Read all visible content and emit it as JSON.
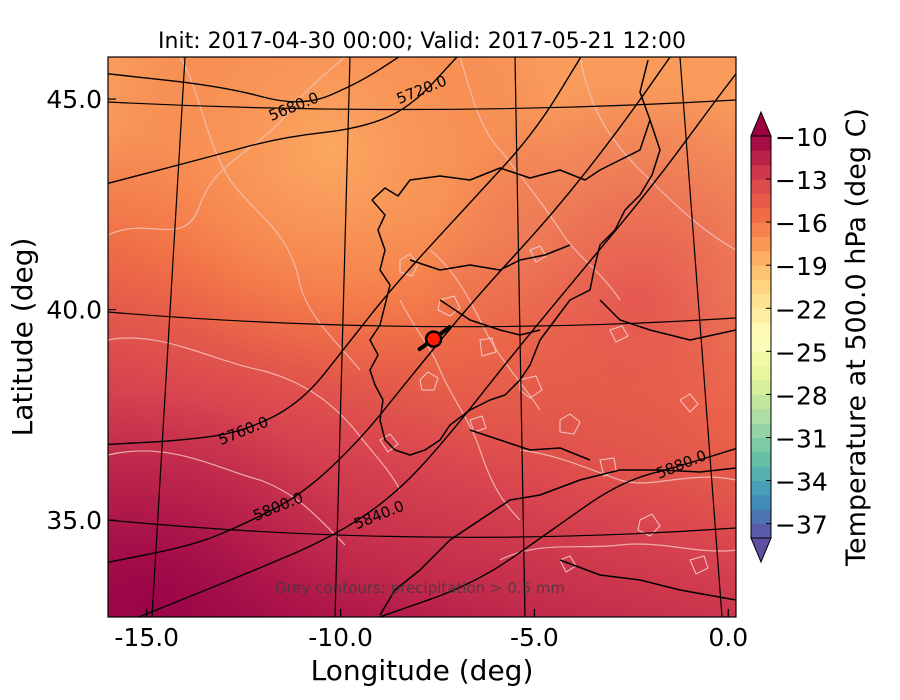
{
  "chart_data": {
    "type": "heatmap",
    "title": "Init: 2017-04-30 00:00; Valid: 2017-05-21 12:00",
    "xlabel": "Longitude (deg)",
    "ylabel": "Latitude (deg)",
    "xlim": [
      -16.0,
      0.2
    ],
    "ylim": [
      32.7,
      46.0
    ],
    "x_ticks": [
      -15.0,
      -10.0,
      -5.0,
      0.0
    ],
    "x_tick_labels": [
      "-15.0",
      "-10.0",
      "-5.0",
      "0.0"
    ],
    "y_ticks": [
      35.0,
      40.0,
      45.0
    ],
    "y_tick_labels": [
      "35.0",
      "40.0",
      "45.0"
    ],
    "colorbar": {
      "label": "Temperature at 500.0 hPa (deg C)",
      "min": -38,
      "max": -10,
      "tick_values": [
        -10,
        -13,
        -16,
        -19,
        -22,
        -25,
        -28,
        -31,
        -34,
        -37
      ],
      "tick_labels": [
        "−10",
        "−13",
        "−16",
        "−19",
        "−22",
        "−25",
        "−28",
        "−31",
        "−34",
        "−37"
      ],
      "colors": [
        "#5e4fa2",
        "#3f93bd",
        "#66c2a5",
        "#abdda4",
        "#e6f598",
        "#ffffbf",
        "#fee08b",
        "#fdae61",
        "#f46d43",
        "#d53e4f",
        "#9e0142"
      ],
      "extend": "both"
    },
    "height_contours": [
      {
        "value": 5680,
        "label": "5680.0",
        "label_lon": -11.2,
        "label_lat": 44.8,
        "points": [
          [
            -16,
            45.6
          ],
          [
            -13,
            45.3
          ],
          [
            -11,
            44.8
          ],
          [
            -9.5,
            45.4
          ],
          [
            -8.5,
            46.0
          ]
        ]
      },
      {
        "value": 5720,
        "label": "5720.0",
        "label_lon": -7.9,
        "label_lat": 45.2,
        "points": [
          [
            -16,
            43.0
          ],
          [
            -13.5,
            43.6
          ],
          [
            -11.5,
            44.1
          ],
          [
            -9.5,
            44.3
          ],
          [
            -8.2,
            44.8
          ],
          [
            -7.0,
            46.0
          ]
        ]
      },
      {
        "value": 5760,
        "label": "5760.0",
        "label_lon": -12.5,
        "label_lat": 37.1,
        "points": [
          [
            -16,
            36.8
          ],
          [
            -14,
            36.9
          ],
          [
            -12.5,
            37.1
          ],
          [
            -11.0,
            37.8
          ],
          [
            -9.8,
            39.2
          ],
          [
            -8.6,
            40.6
          ],
          [
            -6.6,
            42.6
          ],
          [
            -5.0,
            44.2
          ],
          [
            -3.8,
            46.0
          ]
        ]
      },
      {
        "value": 5800,
        "label": "5800.0",
        "label_lon": -11.6,
        "label_lat": 35.3,
        "points": [
          [
            -16,
            34.0
          ],
          [
            -13.8,
            34.4
          ],
          [
            -12.5,
            34.9
          ],
          [
            -11.0,
            35.6
          ],
          [
            -9.5,
            36.9
          ],
          [
            -8.2,
            38.4
          ],
          [
            -6.5,
            40.3
          ],
          [
            -4.5,
            42.3
          ],
          [
            -2.8,
            44.3
          ],
          [
            -1.5,
            46.0
          ]
        ]
      },
      {
        "value": 5840,
        "label": "5840.0",
        "label_lon": -9.0,
        "label_lat": 35.1,
        "points": [
          [
            -15.2,
            32.7
          ],
          [
            -12.5,
            33.7
          ],
          [
            -10.2,
            34.6
          ],
          [
            -8.6,
            35.6
          ],
          [
            -7.3,
            36.9
          ],
          [
            -5.5,
            39.0
          ],
          [
            -3.7,
            41.0
          ],
          [
            -1.9,
            43.0
          ],
          [
            -0.3,
            45.0
          ],
          [
            0.2,
            45.6
          ]
        ]
      },
      {
        "value": 5880,
        "label": "5880.0",
        "label_lon": -1.2,
        "label_lat": 36.3,
        "points": [
          [
            -9.0,
            32.7
          ],
          [
            -6.5,
            33.5
          ],
          [
            -4.5,
            34.8
          ],
          [
            -2.8,
            35.9
          ],
          [
            -1.2,
            36.3
          ],
          [
            0.2,
            36.7
          ]
        ]
      }
    ],
    "marker": {
      "lon": -7.6,
      "lat": 39.3
    },
    "annotation": "Grey contours: precipitation > 0.5 mm"
  }
}
